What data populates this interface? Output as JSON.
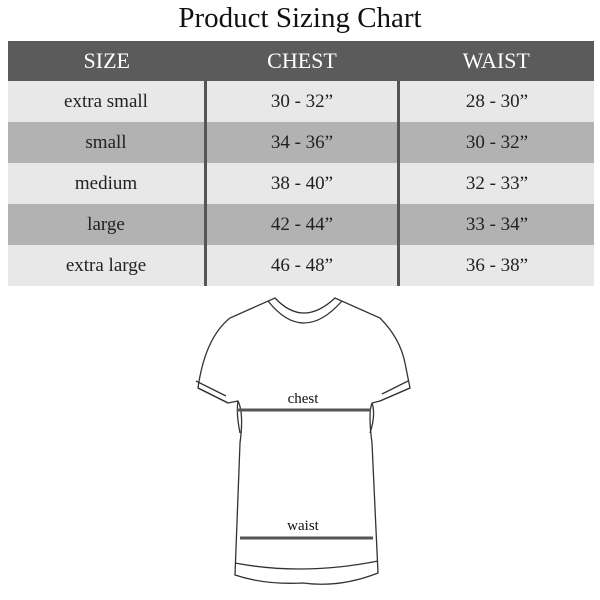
{
  "title": "Product Sizing Chart",
  "table": {
    "headers": [
      "SIZE",
      "CHEST",
      "WAIST"
    ],
    "rows": [
      [
        "extra small",
        "30 - 32”",
        "28 - 30”"
      ],
      [
        "small",
        "34 - 36”",
        "30 - 32”"
      ],
      [
        "medium",
        "38 - 40”",
        "32 - 33”"
      ],
      [
        "large",
        "42 - 44”",
        "33 - 34”"
      ],
      [
        "extra large",
        "46 - 48”",
        "36 - 38”"
      ]
    ]
  },
  "diagram": {
    "chest_label": "chest",
    "waist_label": "waist"
  },
  "colors": {
    "header_bg": "#5b5b5b",
    "row_light": "#e8e8e8",
    "row_dark": "#b2b2b2"
  }
}
